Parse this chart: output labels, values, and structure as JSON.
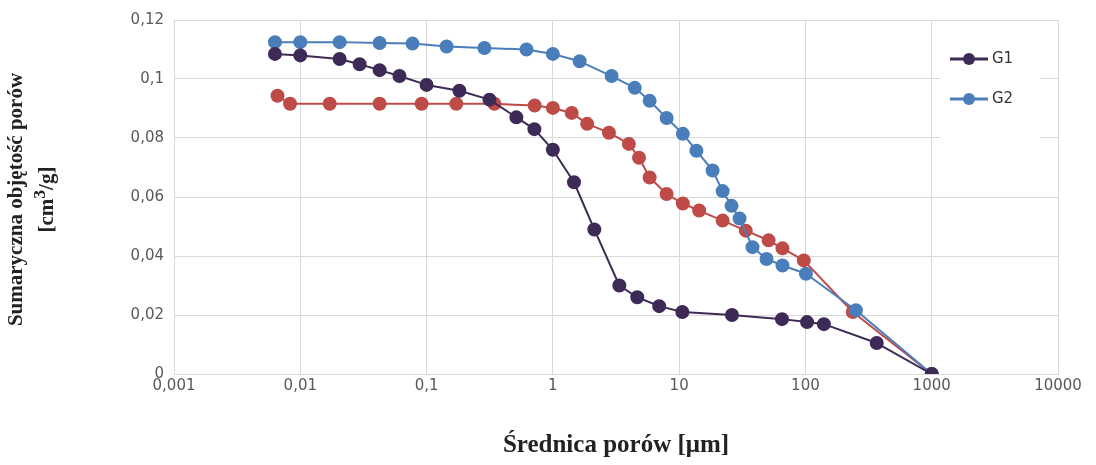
{
  "chart_data": {
    "type": "line",
    "xlabel": "Średnica porów [μm]",
    "ylabel": "Sumaryczna objętość porów [cm$^{3}$/g]",
    "log": "x",
    "xlim": [
      0.001,
      10000
    ],
    "xticks": [
      {
        "value": 0.001,
        "label": "0,001"
      },
      {
        "value": 0.01,
        "label": "0,01"
      },
      {
        "value": 0.1,
        "label": "0,1"
      },
      1,
      10,
      100,
      1000,
      10000
    ],
    "ylim": [
      0,
      0.12
    ],
    "yticks": [
      0,
      {
        "value": 0.02,
        "label": "0,02"
      },
      {
        "value": 0.04,
        "label": "0,04"
      },
      {
        "value": 0.06,
        "label": "0,06"
      },
      {
        "value": 0.08,
        "label": "0,08"
      },
      {
        "value": 0.1,
        "label": "0,1"
      },
      {
        "value": 0.12,
        "label": "0,12"
      }
    ],
    "grid": true,
    "legend": "top right",
    "marker": "circle",
    "line_style": "solid",
    "series": [
      {
        "name": "G1",
        "color": "#3d2a56",
        "x": [
          0.0063,
          0.01,
          0.0205,
          0.0295,
          0.0425,
          0.061,
          0.1,
          0.182,
          0.315,
          0.514,
          0.714,
          1,
          1.47,
          2.13,
          3.36,
          4.66,
          6.95,
          10.6,
          26.2,
          65.2,
          103,
          140,
          367,
          1000
        ],
        "values": [
          0.1085,
          0.108,
          0.1068,
          0.105,
          0.103,
          0.101,
          0.098,
          0.096,
          0.093,
          0.087,
          0.083,
          0.076,
          0.065,
          0.049,
          0.03,
          0.026,
          0.023,
          0.021,
          0.02,
          0.0186,
          0.0176,
          0.0169,
          0.0105,
          0
        ]
      },
      {
        "name": "G2",
        "color": "#4a7ebb",
        "x": [
          0.0063,
          0.01,
          0.0205,
          0.0425,
          0.0774,
          0.144,
          0.287,
          0.618,
          1,
          1.63,
          2.92,
          4.45,
          5.84,
          7.96,
          10.7,
          13.7,
          18.4,
          22.1,
          26,
          30.1,
          38.1,
          49.2,
          65.8,
          101,
          251,
          1000
        ],
        "values": [
          0.1125,
          0.1125,
          0.1125,
          0.1122,
          0.112,
          0.111,
          0.1105,
          0.11,
          0.1085,
          0.106,
          0.101,
          0.097,
          0.0926,
          0.0868,
          0.0814,
          0.0757,
          0.069,
          0.062,
          0.057,
          0.0527,
          0.043,
          0.039,
          0.0368,
          0.034,
          0.0216,
          0
        ]
      },
      {
        "color": "#be4b48",
        "x": [
          0.0066,
          0.0083,
          0.0171,
          0.0425,
          0.0914,
          0.172,
          0.344,
          0.718,
          1,
          1.41,
          1.87,
          2.78,
          4,
          4.81,
          5.84,
          7.96,
          10.7,
          14.4,
          22.1,
          33.7,
          51.1,
          65.8,
          97.1,
          237,
          1000
        ],
        "values": [
          0.0943,
          0.0916,
          0.0916,
          0.0916,
          0.0916,
          0.0916,
          0.0916,
          0.091,
          0.0902,
          0.0885,
          0.0848,
          0.0818,
          0.078,
          0.0733,
          0.0666,
          0.061,
          0.0578,
          0.0554,
          0.052,
          0.0486,
          0.0453,
          0.0426,
          0.0385,
          0.021,
          0
        ]
      }
    ]
  }
}
